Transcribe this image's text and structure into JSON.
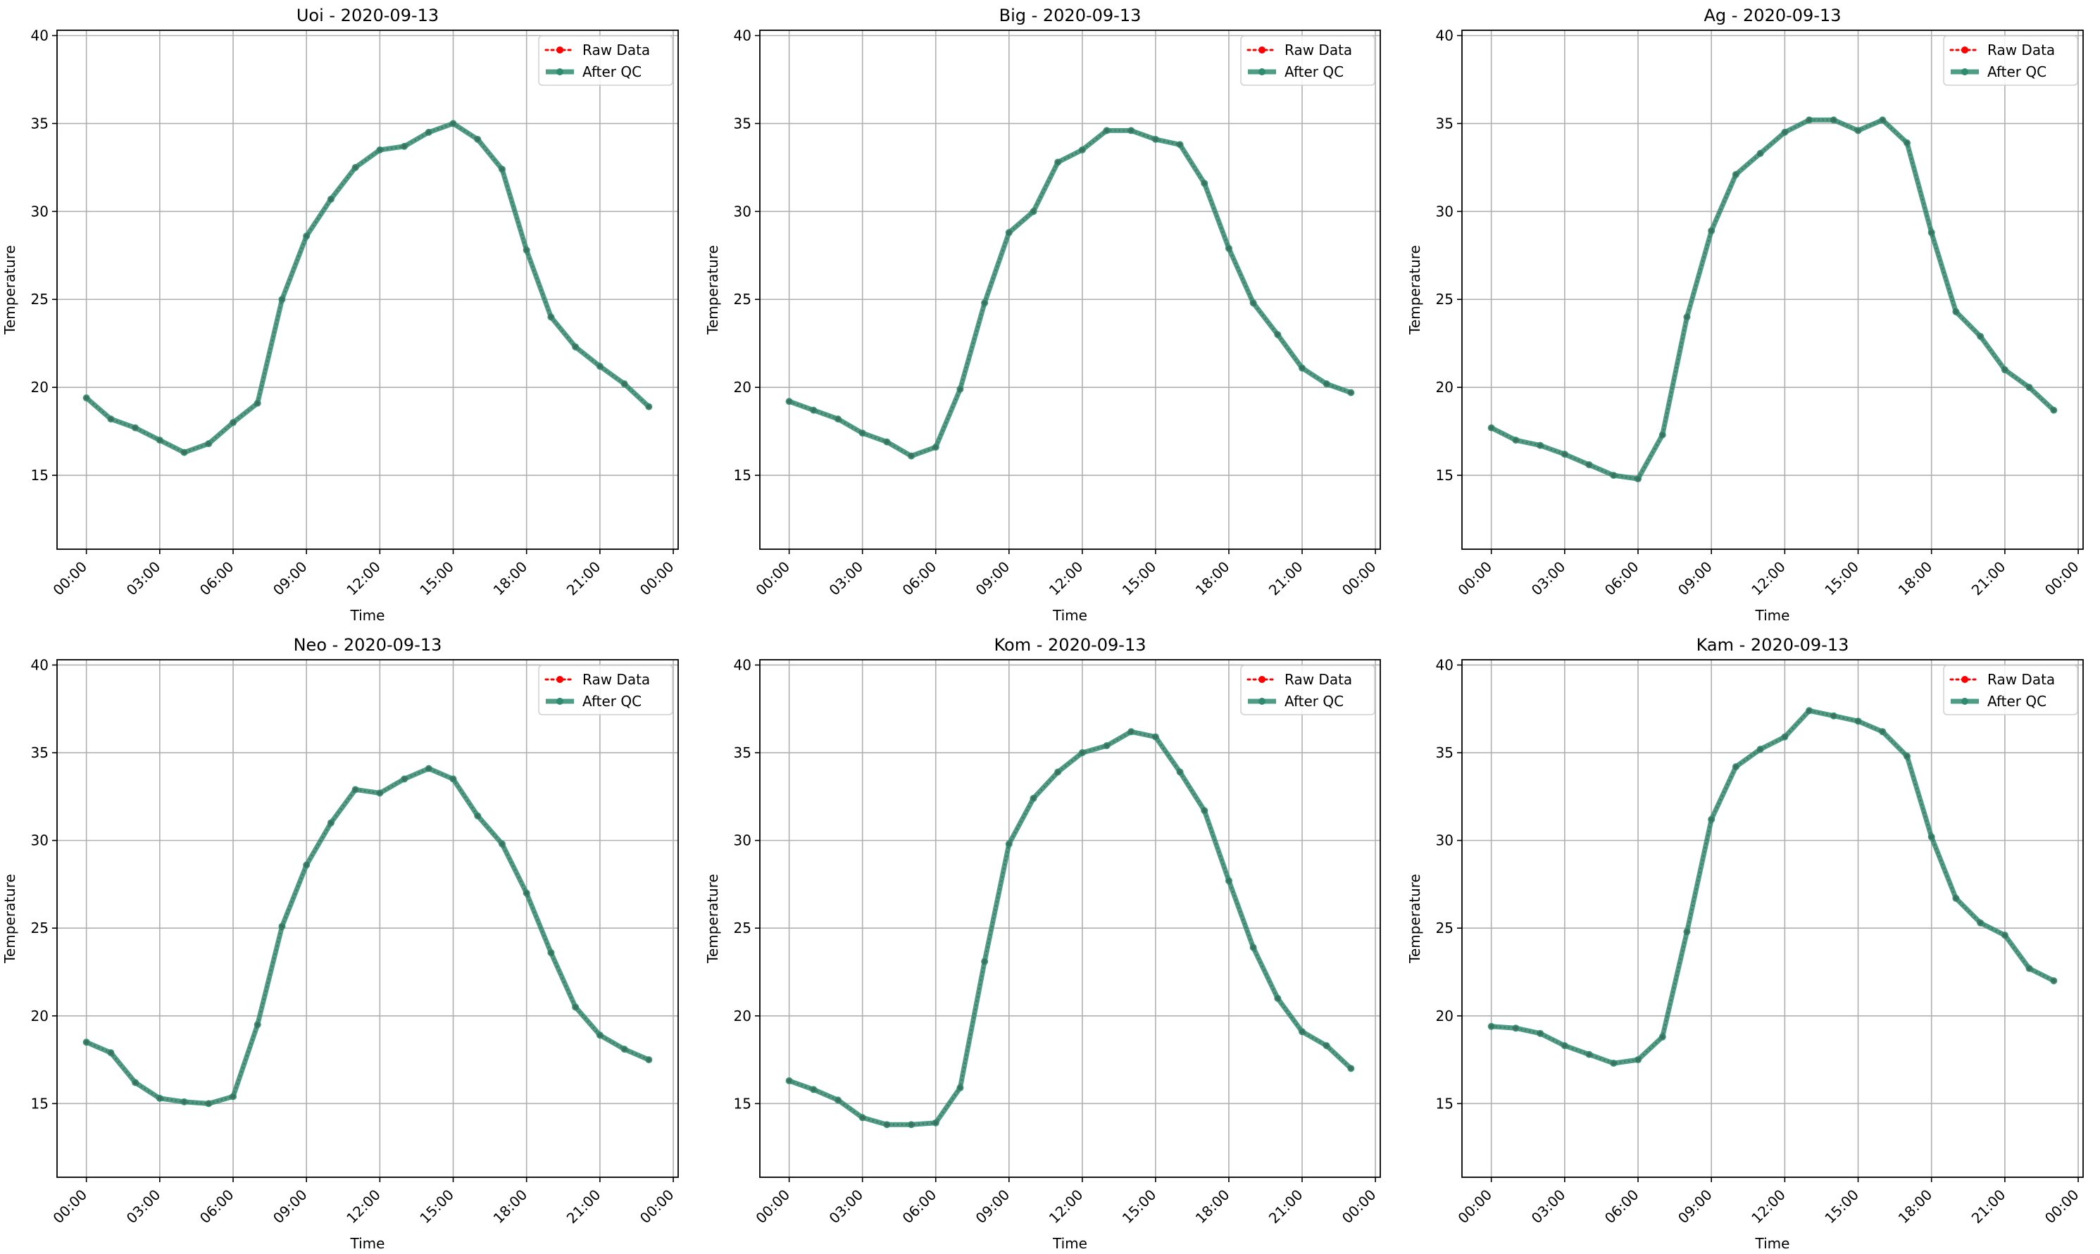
{
  "chart_data": [
    {
      "type": "line",
      "title": "Uoi - 2020-09-13",
      "xlabel": "Time",
      "ylabel": "Temperature",
      "x_ticks": [
        "00:00",
        "03:00",
        "06:00",
        "09:00",
        "12:00",
        "15:00",
        "18:00",
        "21:00",
        "00:00"
      ],
      "y_ticks": [
        15,
        20,
        25,
        30,
        35,
        40
      ],
      "xlim_hours": [
        -1.2,
        24.2
      ],
      "ylim": [
        10.8,
        40.3
      ],
      "grid": true,
      "legend_position": "top-right",
      "series": [
        {
          "name": "Raw Data",
          "color": "#ff0000",
          "style": "dotted",
          "marker": "circle",
          "values": [
            19.4,
            18.2,
            17.7,
            17.0,
            16.3,
            16.8,
            18.0,
            19.1,
            25.0,
            28.6,
            30.7,
            32.5,
            33.5,
            33.7,
            34.5,
            35.0,
            34.1,
            32.4,
            27.8,
            24.0,
            22.3,
            21.2,
            20.2,
            18.9
          ]
        },
        {
          "name": "After QC",
          "color": "#2e8b6e",
          "style": "solid",
          "marker": "circle",
          "values": [
            19.4,
            18.2,
            17.7,
            17.0,
            16.3,
            16.8,
            18.0,
            19.1,
            25.0,
            28.6,
            30.7,
            32.5,
            33.5,
            33.7,
            34.5,
            35.0,
            34.1,
            32.4,
            27.8,
            24.0,
            22.3,
            21.2,
            20.2,
            18.9
          ]
        }
      ]
    },
    {
      "type": "line",
      "title": "Big - 2020-09-13",
      "xlabel": "Time",
      "ylabel": "Temperature",
      "x_ticks": [
        "00:00",
        "03:00",
        "06:00",
        "09:00",
        "12:00",
        "15:00",
        "18:00",
        "21:00",
        "00:00"
      ],
      "y_ticks": [
        15,
        20,
        25,
        30,
        35,
        40
      ],
      "xlim_hours": [
        -1.2,
        24.2
      ],
      "ylim": [
        10.8,
        40.3
      ],
      "grid": true,
      "legend_position": "top-right",
      "series": [
        {
          "name": "Raw Data",
          "color": "#ff0000",
          "style": "dotted",
          "marker": "circle",
          "values": [
            19.2,
            18.7,
            18.2,
            17.4,
            16.9,
            16.1,
            16.6,
            19.9,
            24.8,
            28.8,
            30.0,
            32.8,
            33.5,
            34.6,
            34.6,
            34.1,
            33.8,
            31.6,
            27.9,
            24.8,
            23.0,
            21.1,
            20.2,
            19.7
          ]
        },
        {
          "name": "After QC",
          "color": "#2e8b6e",
          "style": "solid",
          "marker": "circle",
          "values": [
            19.2,
            18.7,
            18.2,
            17.4,
            16.9,
            16.1,
            16.6,
            19.9,
            24.8,
            28.8,
            30.0,
            32.8,
            33.5,
            34.6,
            34.6,
            34.1,
            33.8,
            31.6,
            27.9,
            24.8,
            23.0,
            21.1,
            20.2,
            19.7
          ]
        }
      ]
    },
    {
      "type": "line",
      "title": "Ag - 2020-09-13",
      "xlabel": "Time",
      "ylabel": "Temperature",
      "x_ticks": [
        "00:00",
        "03:00",
        "06:00",
        "09:00",
        "12:00",
        "15:00",
        "18:00",
        "21:00",
        "00:00"
      ],
      "y_ticks": [
        15,
        20,
        25,
        30,
        35,
        40
      ],
      "xlim_hours": [
        -1.2,
        24.2
      ],
      "ylim": [
        10.8,
        40.3
      ],
      "grid": true,
      "legend_position": "top-right",
      "series": [
        {
          "name": "Raw Data",
          "color": "#ff0000",
          "style": "dotted",
          "marker": "circle",
          "values": [
            17.7,
            17.0,
            16.7,
            16.2,
            15.6,
            15.0,
            14.8,
            17.3,
            24.0,
            28.9,
            32.1,
            33.3,
            34.5,
            35.2,
            35.2,
            34.6,
            35.2,
            33.9,
            28.8,
            24.3,
            22.9,
            21.0,
            20.0,
            18.7
          ]
        },
        {
          "name": "After QC",
          "color": "#2e8b6e",
          "style": "solid",
          "marker": "circle",
          "values": [
            17.7,
            17.0,
            16.7,
            16.2,
            15.6,
            15.0,
            14.8,
            17.3,
            24.0,
            28.9,
            32.1,
            33.3,
            34.5,
            35.2,
            35.2,
            34.6,
            35.2,
            33.9,
            28.8,
            24.3,
            22.9,
            21.0,
            20.0,
            18.7
          ]
        }
      ]
    },
    {
      "type": "line",
      "title": "Neo - 2020-09-13",
      "xlabel": "Time",
      "ylabel": "Temperature",
      "x_ticks": [
        "00:00",
        "03:00",
        "06:00",
        "09:00",
        "12:00",
        "15:00",
        "18:00",
        "21:00",
        "00:00"
      ],
      "y_ticks": [
        15,
        20,
        25,
        30,
        35,
        40
      ],
      "xlim_hours": [
        -1.2,
        24.2
      ],
      "ylim": [
        10.8,
        40.3
      ],
      "grid": true,
      "legend_position": "top-right",
      "series": [
        {
          "name": "Raw Data",
          "color": "#ff0000",
          "style": "dotted",
          "marker": "circle",
          "values": [
            18.5,
            17.9,
            16.2,
            15.3,
            15.1,
            15.0,
            15.4,
            19.5,
            25.1,
            28.6,
            31.0,
            32.9,
            32.7,
            33.5,
            34.1,
            33.5,
            31.4,
            29.8,
            27.0,
            23.6,
            20.5,
            18.9,
            18.1,
            17.5
          ]
        },
        {
          "name": "After QC",
          "color": "#2e8b6e",
          "style": "solid",
          "marker": "circle",
          "values": [
            18.5,
            17.9,
            16.2,
            15.3,
            15.1,
            15.0,
            15.4,
            19.5,
            25.1,
            28.6,
            31.0,
            32.9,
            32.7,
            33.5,
            34.1,
            33.5,
            31.4,
            29.8,
            27.0,
            23.6,
            20.5,
            18.9,
            18.1,
            17.5
          ]
        }
      ]
    },
    {
      "type": "line",
      "title": "Kom - 2020-09-13",
      "xlabel": "Time",
      "ylabel": "Temperature",
      "x_ticks": [
        "00:00",
        "03:00",
        "06:00",
        "09:00",
        "12:00",
        "15:00",
        "18:00",
        "21:00",
        "00:00"
      ],
      "y_ticks": [
        15,
        20,
        25,
        30,
        35,
        40
      ],
      "xlim_hours": [
        -1.2,
        24.2
      ],
      "ylim": [
        10.8,
        40.3
      ],
      "grid": true,
      "legend_position": "top-right",
      "series": [
        {
          "name": "Raw Data",
          "color": "#ff0000",
          "style": "dotted",
          "marker": "circle",
          "values": [
            16.3,
            15.8,
            15.2,
            14.2,
            13.8,
            13.8,
            13.9,
            15.9,
            23.1,
            29.8,
            32.4,
            33.9,
            35.0,
            35.4,
            36.2,
            35.9,
            33.9,
            31.7,
            27.7,
            23.9,
            21.0,
            19.1,
            18.3,
            17.0
          ]
        },
        {
          "name": "After QC",
          "color": "#2e8b6e",
          "style": "solid",
          "marker": "circle",
          "values": [
            16.3,
            15.8,
            15.2,
            14.2,
            13.8,
            13.8,
            13.9,
            15.9,
            23.1,
            29.8,
            32.4,
            33.9,
            35.0,
            35.4,
            36.2,
            35.9,
            33.9,
            31.7,
            27.7,
            23.9,
            21.0,
            19.1,
            18.3,
            17.0
          ]
        }
      ]
    },
    {
      "type": "line",
      "title": "Kam - 2020-09-13",
      "xlabel": "Time",
      "ylabel": "Temperature",
      "x_ticks": [
        "00:00",
        "03:00",
        "06:00",
        "09:00",
        "12:00",
        "15:00",
        "18:00",
        "21:00",
        "00:00"
      ],
      "y_ticks": [
        15,
        20,
        25,
        30,
        35,
        40
      ],
      "xlim_hours": [
        -1.2,
        24.2
      ],
      "ylim": [
        10.8,
        40.3
      ],
      "grid": true,
      "legend_position": "top-right",
      "series": [
        {
          "name": "Raw Data",
          "color": "#ff0000",
          "style": "dotted",
          "marker": "circle",
          "values": [
            19.4,
            19.3,
            19.0,
            18.3,
            17.8,
            17.3,
            17.5,
            18.8,
            24.8,
            31.2,
            34.2,
            35.2,
            35.9,
            37.4,
            37.1,
            36.8,
            36.2,
            34.8,
            30.2,
            26.7,
            25.3,
            24.6,
            22.7,
            22.0
          ]
        },
        {
          "name": "After QC",
          "color": "#2e8b6e",
          "style": "solid",
          "marker": "circle",
          "values": [
            19.4,
            19.3,
            19.0,
            18.3,
            17.8,
            17.3,
            17.5,
            18.8,
            24.8,
            31.2,
            34.2,
            35.2,
            35.9,
            37.4,
            37.1,
            36.8,
            36.2,
            34.8,
            30.2,
            26.7,
            25.3,
            24.6,
            22.7,
            22.0
          ]
        }
      ]
    }
  ]
}
